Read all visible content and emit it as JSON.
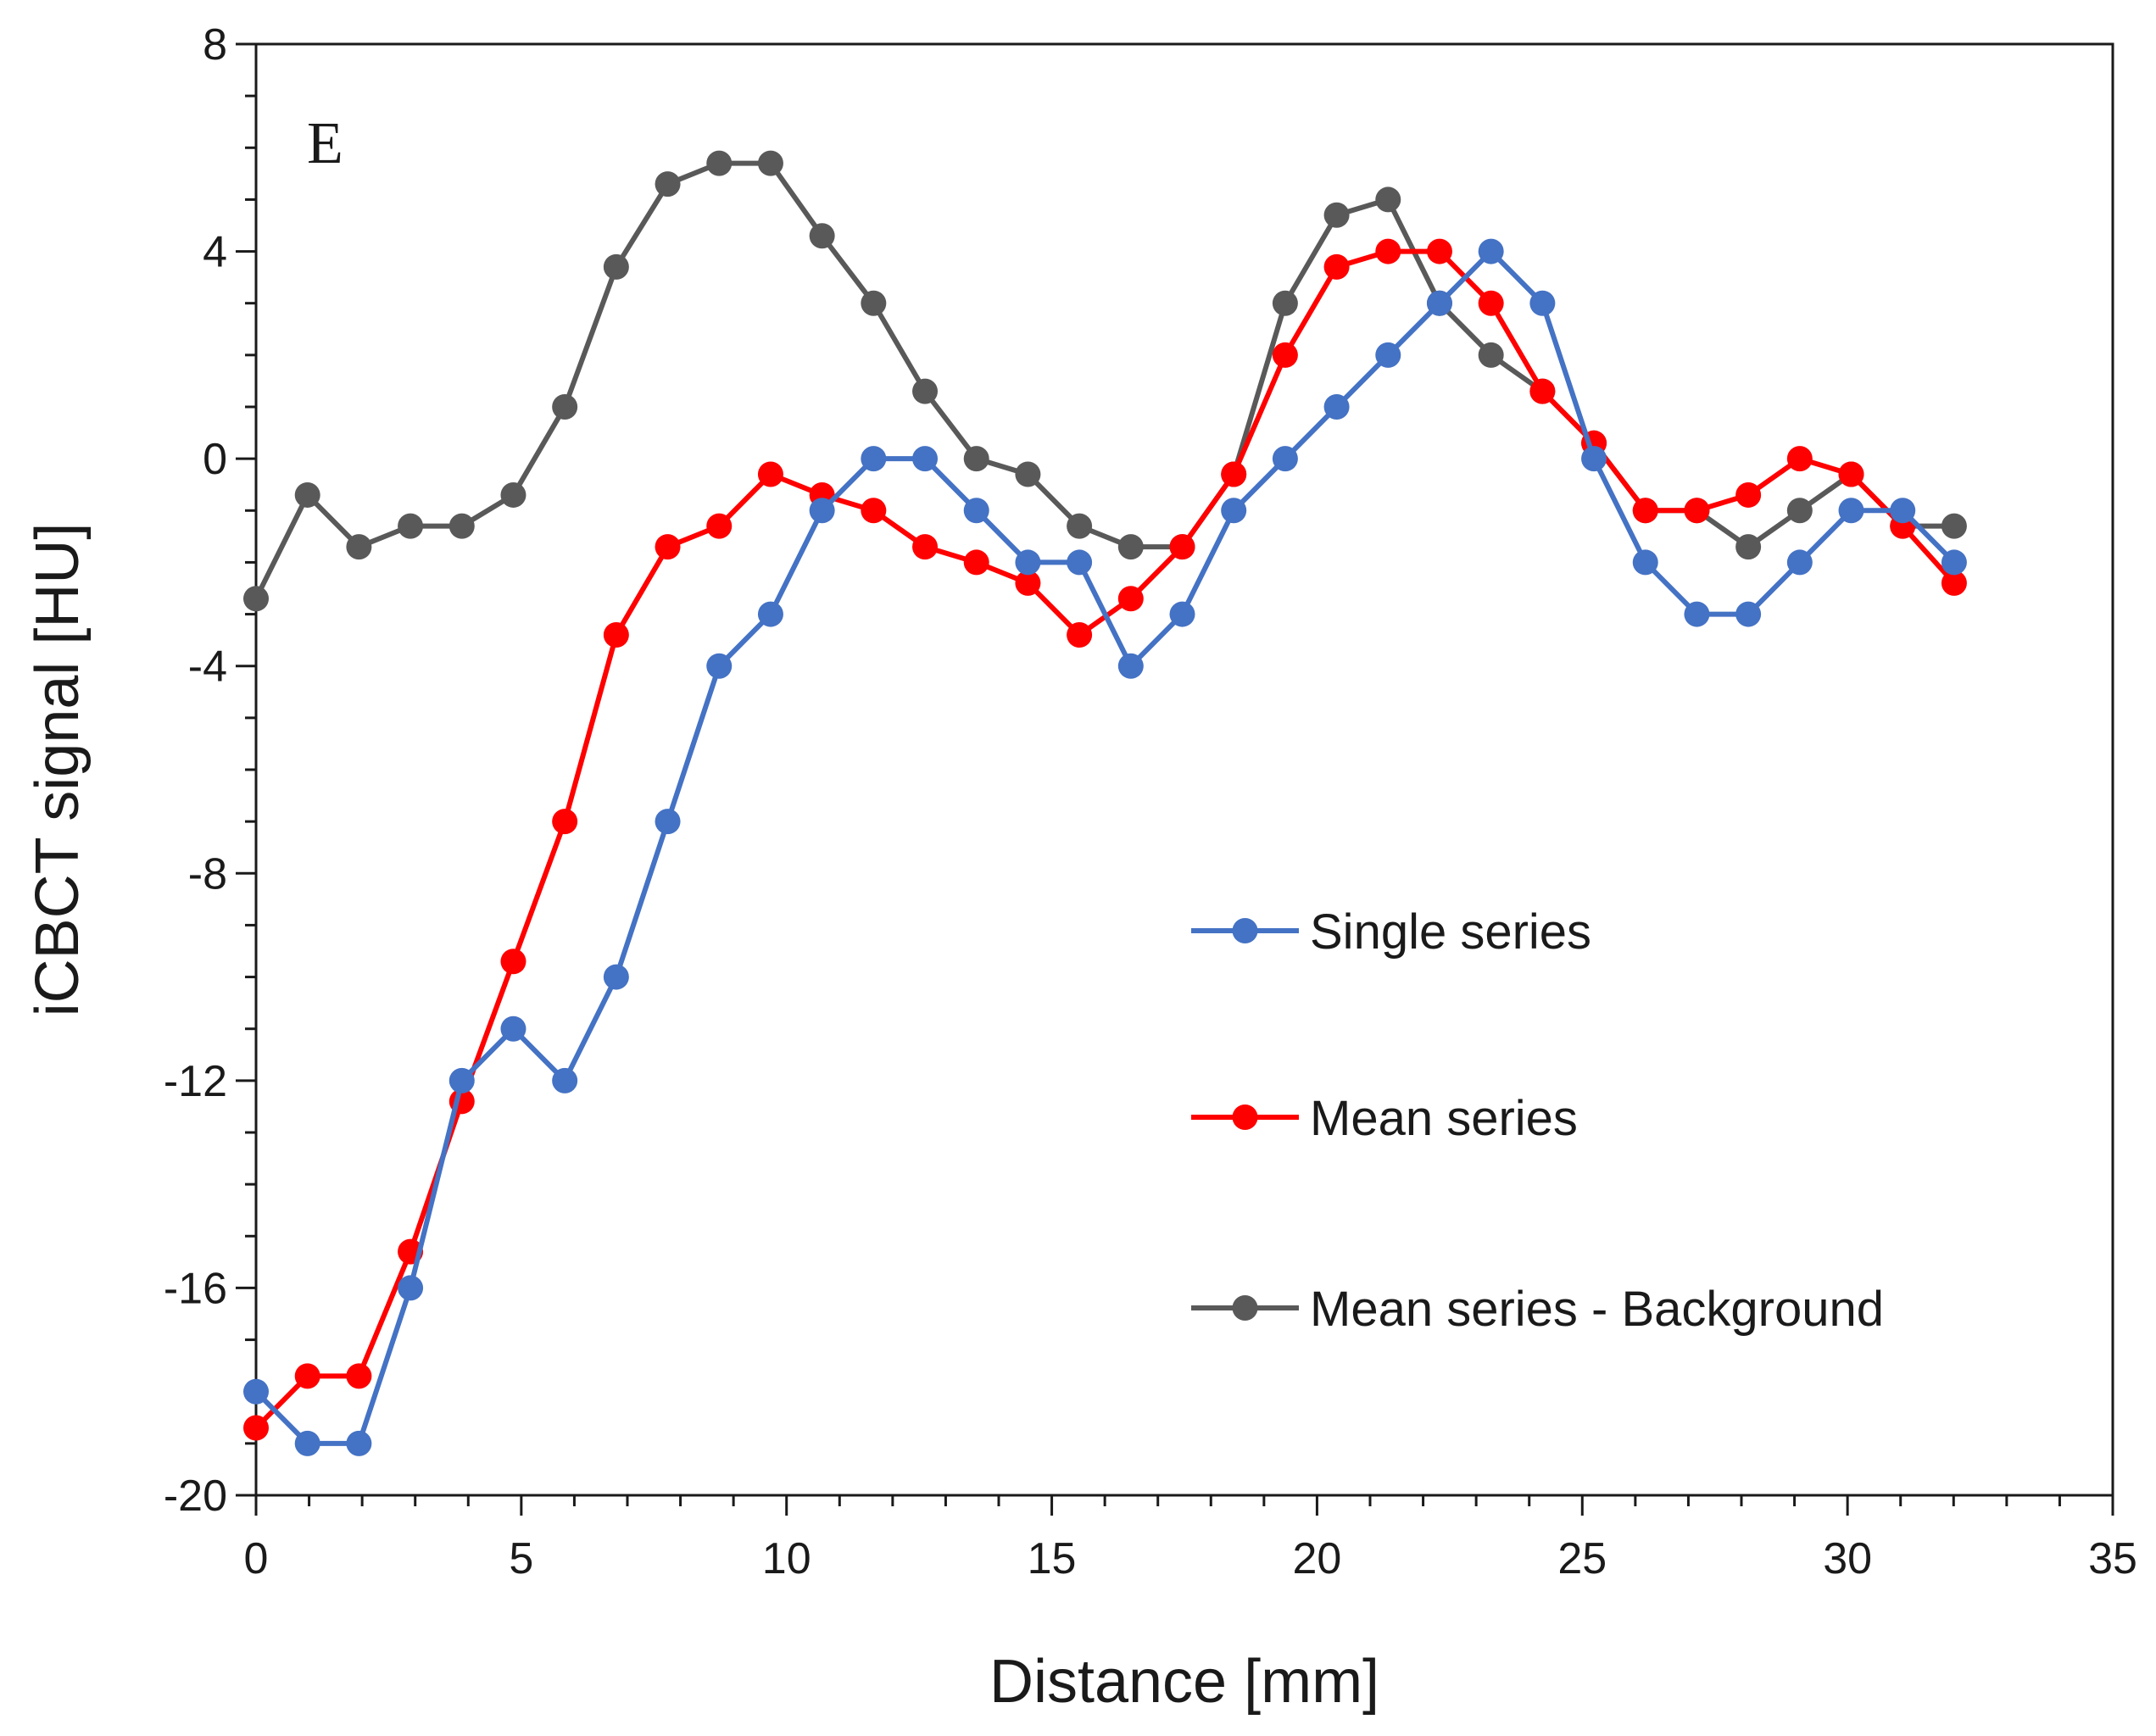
{
  "chart_data": {
    "type": "line",
    "panel_label": "E",
    "title": "",
    "xlabel": "Distance [mm]",
    "ylabel": "iCBCT signal [HU]",
    "xlim": [
      0,
      35
    ],
    "ylim": [
      -20,
      8
    ],
    "xticks": [
      0,
      5,
      10,
      15,
      20,
      25,
      30,
      35
    ],
    "yticks": [
      -20,
      -16,
      -12,
      -8,
      -4,
      0,
      4,
      8
    ],
    "legend_position": "center-right",
    "grid": false,
    "x": [
      0,
      0.97,
      1.94,
      2.91,
      3.88,
      4.85,
      5.82,
      6.79,
      7.76,
      8.73,
      9.7,
      10.67,
      11.64,
      12.61,
      13.58,
      14.55,
      15.52,
      16.49,
      17.46,
      18.43,
      19.4,
      20.37,
      21.34,
      22.31,
      23.28,
      24.25,
      25.22,
      26.19,
      27.16,
      28.13,
      29.1,
      30.07,
      31.04,
      32.01
    ],
    "series": [
      {
        "name": "Single series",
        "color": "#4472c4",
        "values": [
          -18,
          -19,
          -19,
          -16,
          -12,
          -11,
          -12,
          -10,
          -7,
          -4,
          -3,
          -1,
          0,
          0,
          -1,
          -2,
          -2,
          -4,
          -3,
          -1,
          0,
          1,
          2,
          3,
          4,
          3,
          0,
          -2,
          -3,
          -3,
          -2,
          -1,
          -1,
          -2
        ]
      },
      {
        "name": "Mean series",
        "color": "#ff0000",
        "values": [
          -18.7,
          -17.7,
          -17.7,
          -15.3,
          -12.4,
          -9.7,
          -7,
          -3.4,
          -1.7,
          -1.3,
          -0.3,
          -0.7,
          -1,
          -1.7,
          -2,
          -2.4,
          -3.4,
          -2.7,
          -1.7,
          -0.3,
          2,
          3.7,
          4,
          4,
          3,
          1.3,
          0.3,
          -1,
          -1,
          -0.7,
          0,
          -0.3,
          -1.3,
          -2.4
        ]
      },
      {
        "name": "Mean series - Background",
        "color": "#595959",
        "values": [
          -2.7,
          -0.7,
          -1.7,
          -1.3,
          -1.3,
          -0.7,
          1,
          3.7,
          5.3,
          5.7,
          5.7,
          4.3,
          3,
          1.3,
          0,
          -0.3,
          -1.3,
          -1.7,
          -1.7,
          -0.3,
          3,
          4.7,
          5,
          3,
          2,
          1.3,
          0.3,
          -1,
          -1,
          -1.7,
          -1,
          -0.3,
          -1.3,
          -1.3
        ]
      }
    ]
  }
}
